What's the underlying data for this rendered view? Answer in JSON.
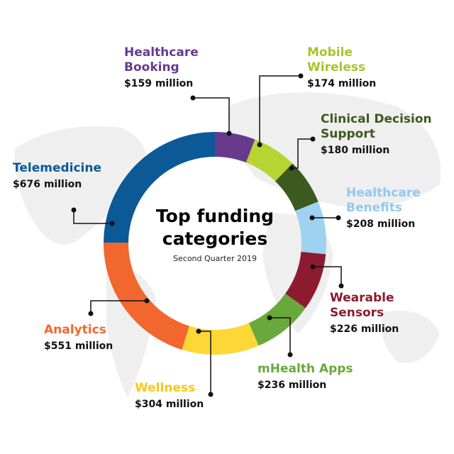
{
  "chart_data": {
    "type": "donut",
    "title": "Top funding categories",
    "subtitle": "Second Quarter 2019",
    "categories": [
      "Healthcare Booking",
      "Mobile Wireless",
      "Clinical Decision Support",
      "Healthcare Benefits",
      "Wearable Sensors",
      "mHealth Apps",
      "Wellness",
      "Analytics",
      "Telemedicine"
    ],
    "values": [
      159,
      174,
      180,
      208,
      226,
      236,
      304,
      551,
      676
    ],
    "value_labels": [
      "$159 million",
      "$174 million",
      "$180 million",
      "$208 million",
      "$226 million",
      "$236 million",
      "$304 million",
      "$551 million",
      "$676 million"
    ],
    "colors": [
      "#673a8e",
      "#b7d433",
      "#3c5a1d",
      "#9fd2f1",
      "#8c1b30",
      "#69a93c",
      "#fdd736",
      "#f1672e",
      "#0b5996"
    ]
  }
}
